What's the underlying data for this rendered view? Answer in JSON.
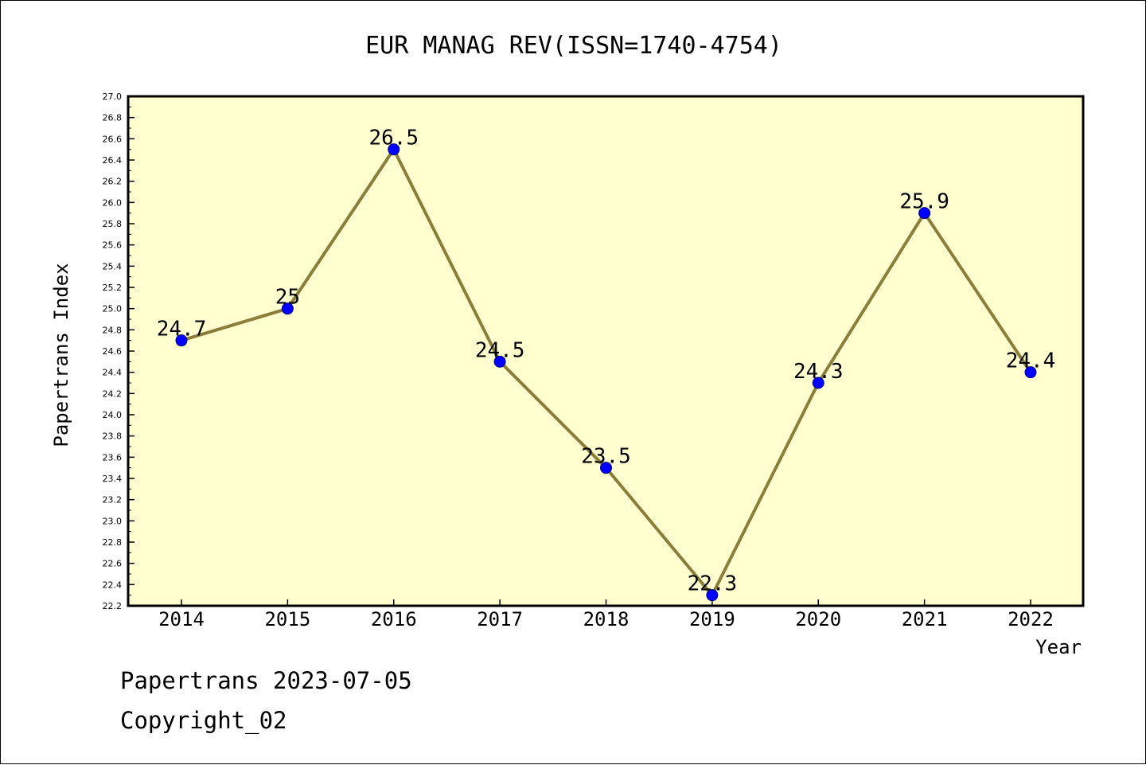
{
  "chart_data": {
    "type": "line",
    "title": "EUR MANAG REV(ISSN=1740-4754)",
    "xlabel": "Year",
    "ylabel": "Papertrans Index",
    "categories": [
      "2014",
      "2015",
      "2016",
      "2017",
      "2018",
      "2019",
      "2020",
      "2021",
      "2022"
    ],
    "series": [
      {
        "values": [
          24.7,
          25.0,
          26.5,
          24.5,
          23.5,
          22.3,
          24.3,
          25.9,
          24.4
        ],
        "labels": [
          "24.7",
          "25",
          "26.5",
          "24.5",
          "23.5",
          "22.3",
          "24.3",
          "25.9",
          "24.4"
        ]
      }
    ],
    "ylim": [
      22.2,
      27.0
    ],
    "ytick_step": 0.2,
    "grid": false,
    "legend": "none",
    "colors": {
      "plot_background": "#ffffd0",
      "line": "#8b7d3a",
      "marker": "#0000ff"
    }
  },
  "footer": {
    "line1": "Papertrans 2023-07-05",
    "line2": "Copyright_02"
  }
}
